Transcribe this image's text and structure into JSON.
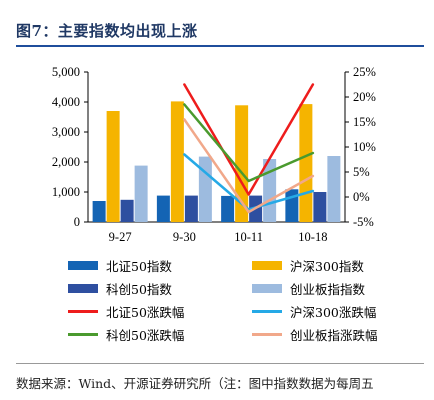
{
  "title": "图7：主要指数均出现上涨",
  "source": "数据来源：Wind、开源证券研究所（注：图中指数数据为每周五",
  "chart_data": {
    "type": "bar+line",
    "categories": [
      "9-27",
      "9-30",
      "10-11",
      "10-18"
    ],
    "left_axis": {
      "min": 0,
      "max": 5000,
      "ticks": [
        "0",
        "1,000",
        "2,000",
        "3,000",
        "4,000",
        "5,000"
      ]
    },
    "right_axis": {
      "min": -5,
      "max": 25,
      "ticks": [
        "-5%",
        "0%",
        "5%",
        "10%",
        "15%",
        "20%",
        "25%"
      ]
    },
    "bar_series": [
      {
        "name": "北证50指数",
        "color": "#1464b4",
        "values": [
          700,
          880,
          870,
          1090
        ]
      },
      {
        "name": "沪深300指数",
        "color": "#f5b400",
        "values": [
          3700,
          4020,
          3890,
          3930
        ]
      },
      {
        "name": "科创50指数",
        "color": "#2e4fa0",
        "values": [
          740,
          880,
          880,
          1000
        ]
      },
      {
        "name": "创业板指指数",
        "color": "#9dbbdf",
        "values": [
          1880,
          2180,
          2100,
          2200
        ]
      }
    ],
    "line_series": [
      {
        "name": "北证50涨跌幅",
        "color": "#ee1c1c",
        "x": [
          "9-30",
          "10-11",
          "10-18"
        ],
        "values": [
          22.5,
          0.5,
          22.5
        ]
      },
      {
        "name": "沪深300涨跌幅",
        "color": "#25a9e6",
        "x": [
          "9-30",
          "10-11",
          "10-18"
        ],
        "values": [
          8.5,
          -2.5,
          1.2
        ]
      },
      {
        "name": "科创50涨跌幅",
        "color": "#4a9a2e",
        "x": [
          "9-30",
          "10-11",
          "10-18"
        ],
        "values": [
          18.5,
          3.2,
          8.8
        ]
      },
      {
        "name": "创业板指涨跌幅",
        "color": "#f1a88a",
        "x": [
          "9-30",
          "10-11",
          "10-18"
        ],
        "values": [
          15.5,
          -3.0,
          4.2
        ]
      }
    ],
    "legend": [
      "北证50指数",
      "沪深300指数",
      "科创50指数",
      "创业板指指数",
      "北证50涨跌幅",
      "沪深300涨跌幅",
      "科创50涨跌幅",
      "创业板指涨跌幅"
    ]
  }
}
